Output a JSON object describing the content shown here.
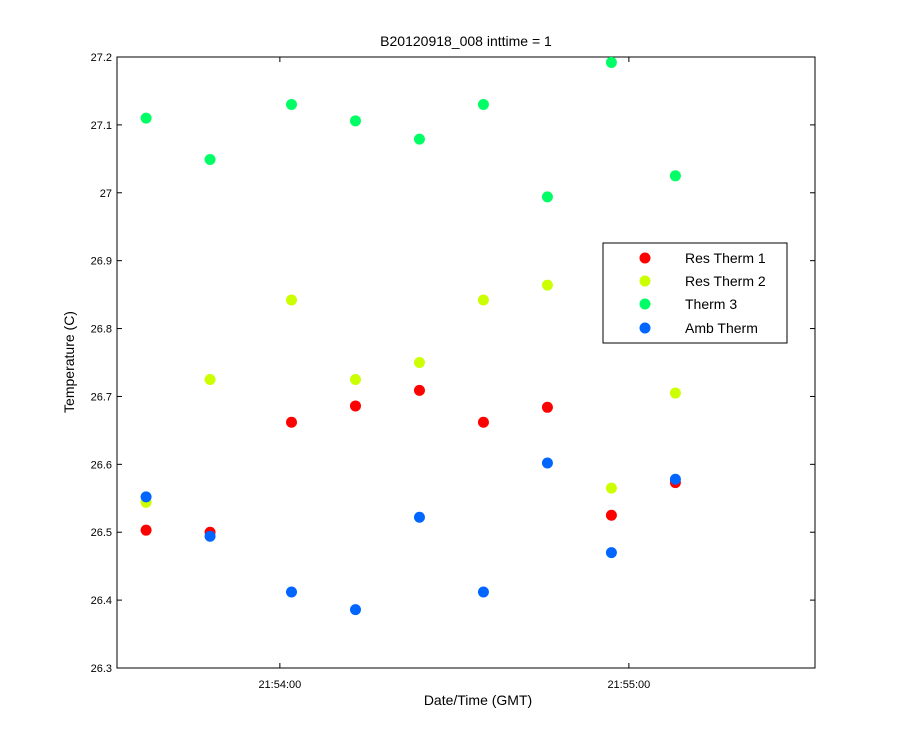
{
  "chart_data": {
    "type": "scatter",
    "title": "B20120918_008 inttime = 1",
    "xlabel": "Date/Time (GMT)",
    "ylabel": "Temperature (C)",
    "xlim": [
      "21:53:32",
      "21:55:32"
    ],
    "ylim": [
      26.3,
      27.2
    ],
    "xticks": [
      "21:54:00",
      "21:55:00"
    ],
    "yticks": [
      "26.3",
      "26.4",
      "26.5",
      "26.6",
      "26.7",
      "26.8",
      "26.9",
      "27",
      "27.1",
      "27.2"
    ],
    "legend_position": "right",
    "x": [
      "21:53:37",
      "21:53:48",
      "21:54:02",
      "21:54:13",
      "21:54:24",
      "21:54:35",
      "21:54:46",
      "21:54:57",
      "21:55:08"
    ],
    "series": [
      {
        "name": "Res Therm 1",
        "color": "#ff0000",
        "values": [
          26.503,
          26.5,
          26.662,
          26.686,
          26.709,
          26.662,
          26.684,
          26.525,
          26.573
        ]
      },
      {
        "name": "Res Therm 2",
        "color": "#ccff00",
        "values": [
          26.544,
          26.725,
          26.842,
          26.725,
          26.75,
          26.842,
          26.864,
          26.565,
          26.705
        ]
      },
      {
        "name": "Therm 3",
        "color": "#00ff66",
        "values": [
          27.11,
          27.049,
          27.13,
          27.106,
          27.079,
          27.13,
          26.994,
          27.192,
          27.025
        ]
      },
      {
        "name": "Amb Therm",
        "color": "#0066ff",
        "values": [
          26.552,
          26.494,
          26.412,
          26.386,
          26.522,
          26.412,
          26.602,
          26.47,
          26.578
        ]
      }
    ]
  }
}
